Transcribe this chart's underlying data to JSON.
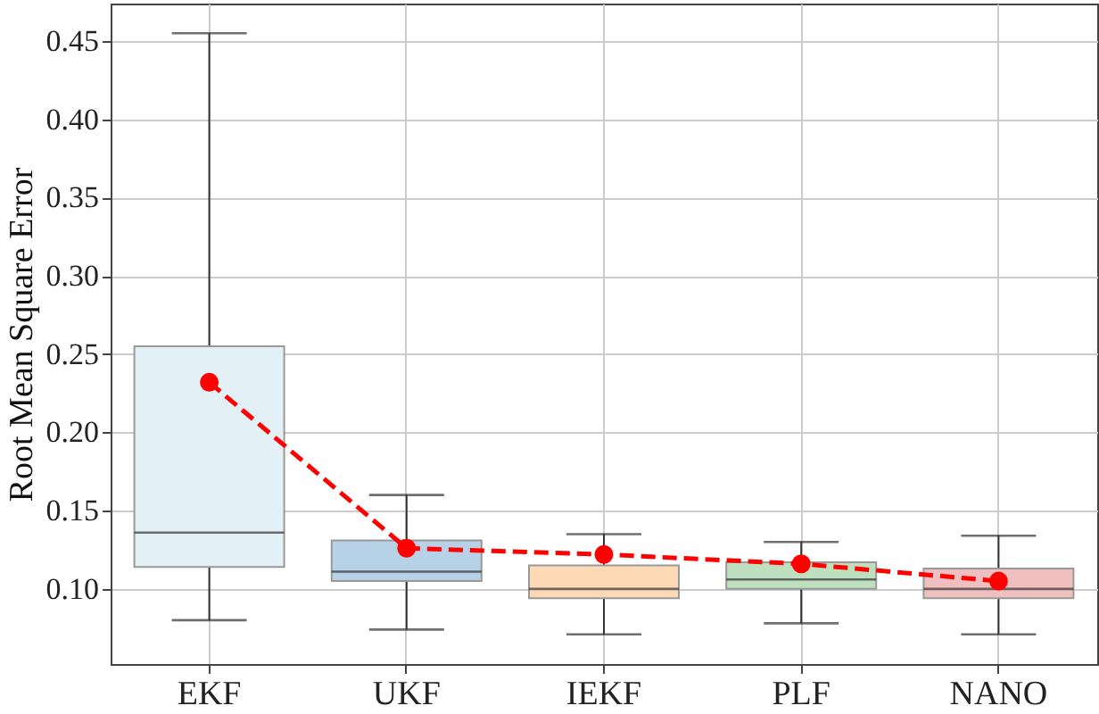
{
  "chart_data": {
    "type": "box",
    "ylabel": "Root Mean Square Error",
    "categories": [
      "EKF",
      "UKF",
      "IEKF",
      "PLF",
      "NANO"
    ],
    "boxes": [
      {
        "low": 0.08,
        "q1": 0.114,
        "median": 0.136,
        "q3": 0.255,
        "high": 0.455
      },
      {
        "low": 0.074,
        "q1": 0.105,
        "median": 0.111,
        "q3": 0.131,
        "high": 0.16
      },
      {
        "low": 0.071,
        "q1": 0.094,
        "median": 0.1,
        "q3": 0.115,
        "high": 0.135
      },
      {
        "low": 0.078,
        "q1": 0.1,
        "median": 0.106,
        "q3": 0.117,
        "high": 0.13
      },
      {
        "low": 0.071,
        "q1": 0.094,
        "median": 0.1,
        "q3": 0.113,
        "high": 0.134
      }
    ],
    "colors": [
      "#e3f1f6",
      "#b7d2e7",
      "#fdd9b5",
      "#bfe0be",
      "#f0bfc0"
    ],
    "series": [
      {
        "type": "line",
        "color": "#ff0000",
        "values": [
          0.232,
          0.126,
          0.122,
          0.116,
          0.105
        ],
        "marker": "circle",
        "line_style": "dashed"
      }
    ],
    "ylim": [
      0.052,
      0.474
    ],
    "yticks": [
      {
        "value": 0.1,
        "label": "0.10"
      },
      0.15,
      {
        "value": 0.2,
        "label": "0.20"
      },
      0.25,
      {
        "value": 0.3,
        "label": "0.30"
      },
      0.35,
      {
        "value": 0.4,
        "label": "0.40"
      },
      0.45
    ],
    "grid": true
  }
}
